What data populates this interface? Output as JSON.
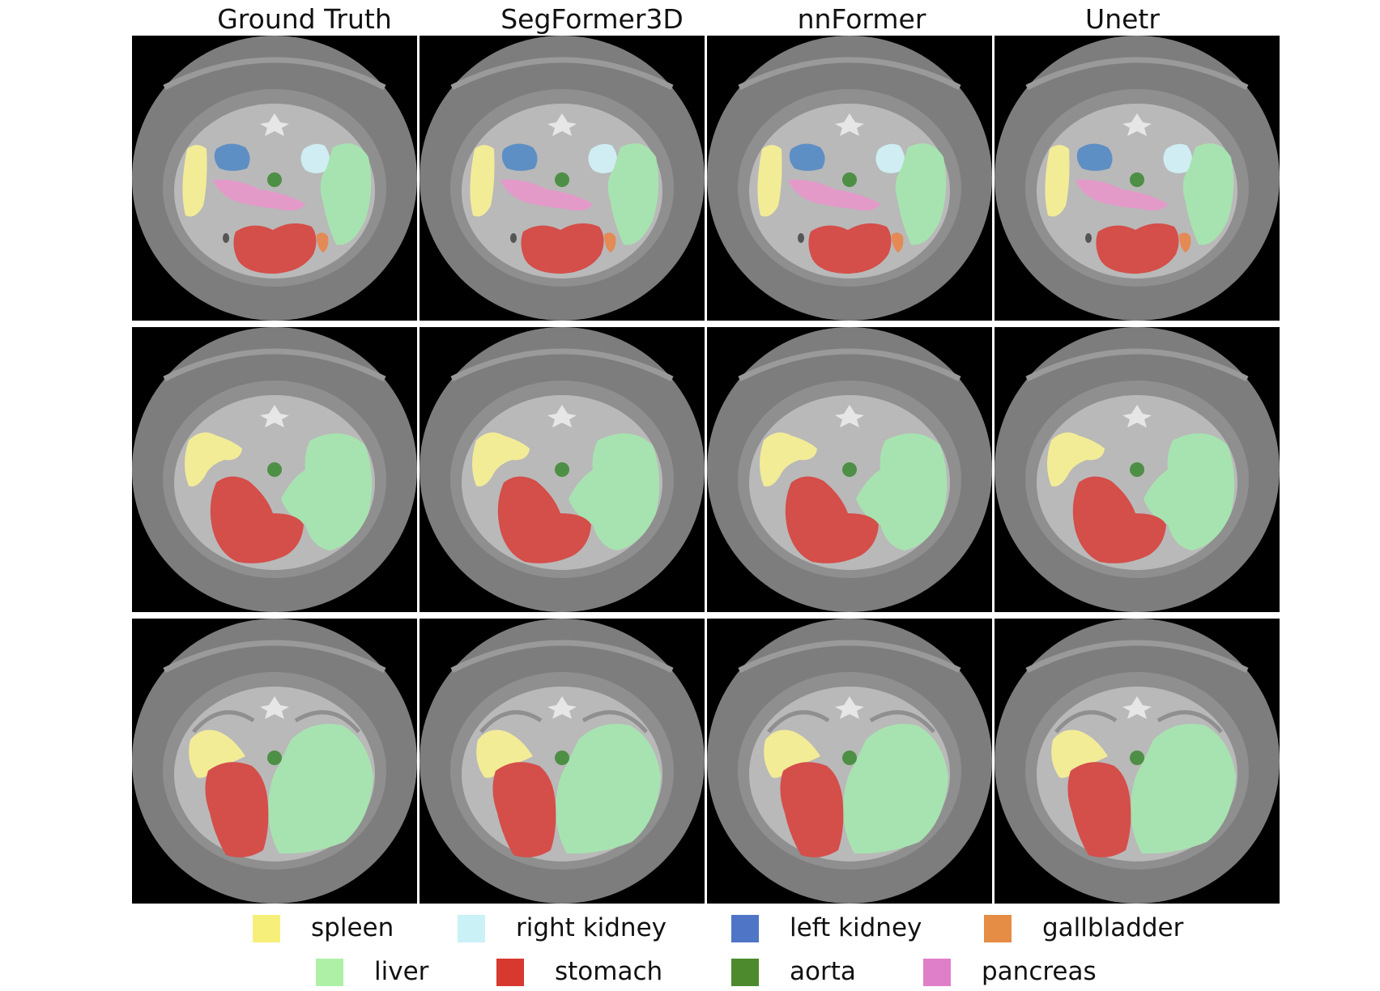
{
  "columns": [
    "Ground Truth",
    "SegFormer3D",
    "nnFormer",
    "Unetr"
  ],
  "rows": 3,
  "legend": [
    {
      "label": "spleen",
      "color": "#f6ef7a",
      "row": 0
    },
    {
      "label": "right kidney",
      "color": "#c9f1f6",
      "row": 0
    },
    {
      "label": "left kidney",
      "color": "#4f75c6",
      "row": 0
    },
    {
      "label": "gallbladder",
      "color": "#e58c45",
      "row": 0
    },
    {
      "label": "liver",
      "color": "#adf0a6",
      "row": 1
    },
    {
      "label": "stomach",
      "color": "#d8392f",
      "row": 1
    },
    {
      "label": "aorta",
      "color": "#4d8a2d",
      "row": 1
    },
    {
      "label": "pancreas",
      "color": "#e07fc9",
      "row": 1
    }
  ],
  "colors": {
    "background": "#000000",
    "body_outer": "#7d7d7d",
    "body_tissue": "#b9b9b9",
    "spleen": "#f3ec97",
    "right_kidney": "#cfedf2",
    "left_kidney": "#5e8fc4",
    "gallbladder": "#e38a55",
    "liver": "#a7e3b0",
    "stomach": "#d44e4a",
    "aorta": "#4e8f46",
    "pancreas": "#e39ac9"
  }
}
